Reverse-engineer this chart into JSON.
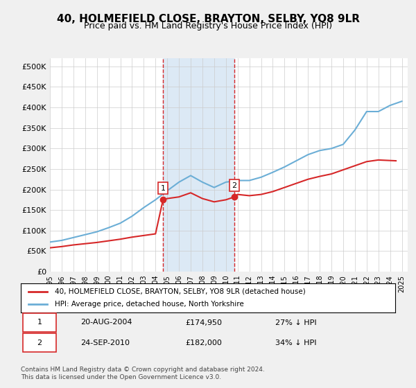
{
  "title": "40, HOLMEFIELD CLOSE, BRAYTON, SELBY, YO8 9LR",
  "subtitle": "Price paid vs. HM Land Registry's House Price Index (HPI)",
  "ylabel_ticks": [
    "£0",
    "£50K",
    "£100K",
    "£150K",
    "£200K",
    "£250K",
    "£300K",
    "£350K",
    "£400K",
    "£450K",
    "£500K"
  ],
  "ytick_values": [
    0,
    50000,
    100000,
    150000,
    200000,
    250000,
    300000,
    350000,
    400000,
    450000,
    500000
  ],
  "ylim": [
    0,
    520000
  ],
  "xlim_start": 1995.0,
  "xlim_end": 2025.5,
  "transaction1": {
    "date": 2004.64,
    "price": 174950,
    "label": "1"
  },
  "transaction2": {
    "date": 2010.73,
    "price": 182000,
    "label": "2"
  },
  "hpi_line_color": "#6baed6",
  "price_line_color": "#d62728",
  "highlight_color": "#dce9f5",
  "dashed_line_color": "#d62728",
  "legend_label1": "40, HOLMEFIELD CLOSE, BRAYTON, SELBY, YO8 9LR (detached house)",
  "legend_label2": "HPI: Average price, detached house, North Yorkshire",
  "table_row1": [
    "1",
    "20-AUG-2004",
    "£174,950",
    "27% ↓ HPI"
  ],
  "table_row2": [
    "2",
    "24-SEP-2010",
    "£182,000",
    "34% ↓ HPI"
  ],
  "footer": "Contains HM Land Registry data © Crown copyright and database right 2024.\nThis data is licensed under the Open Government Licence v3.0.",
  "hpi_years": [
    1995,
    1996,
    1997,
    1998,
    1999,
    2000,
    2001,
    2002,
    2003,
    2004,
    2005,
    2006,
    2007,
    2008,
    2009,
    2010,
    2011,
    2012,
    2013,
    2014,
    2015,
    2016,
    2017,
    2018,
    2019,
    2020,
    2021,
    2022,
    2023,
    2024,
    2025
  ],
  "hpi_values": [
    72000,
    76000,
    83000,
    90000,
    97000,
    107000,
    118000,
    135000,
    156000,
    175000,
    197000,
    218000,
    234000,
    218000,
    205000,
    218000,
    222000,
    222000,
    230000,
    242000,
    255000,
    270000,
    285000,
    295000,
    300000,
    310000,
    345000,
    390000,
    390000,
    405000,
    415000
  ],
  "price_years": [
    1995,
    2004.64,
    2010.73,
    2024.5
  ],
  "price_values": [
    58000,
    174950,
    182000,
    270000
  ],
  "background_color": "#f0f0f0",
  "plot_bg_color": "#ffffff"
}
